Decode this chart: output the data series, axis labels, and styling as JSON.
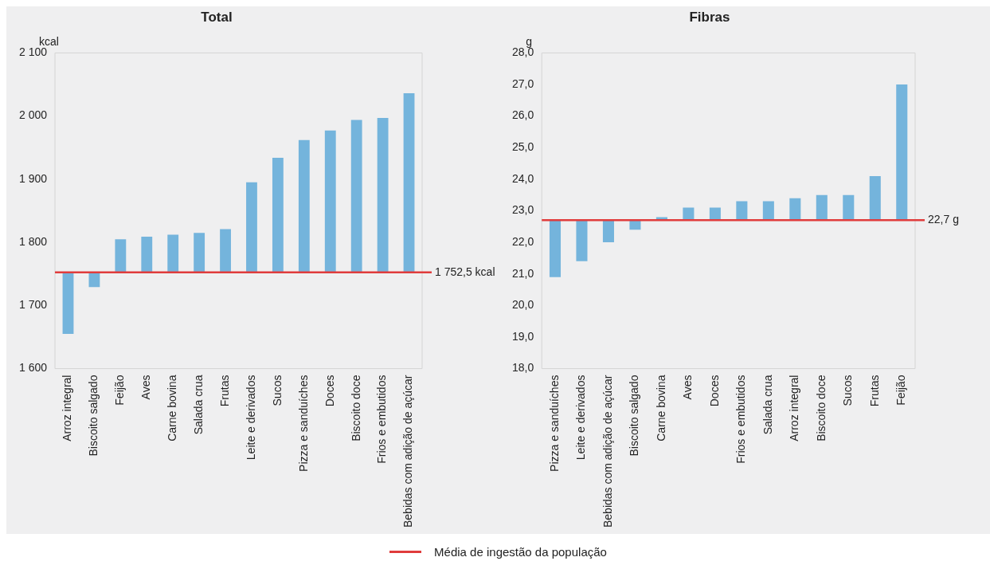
{
  "chart_data": [
    {
      "type": "bar",
      "title": "Total",
      "ylabel": "kcal",
      "categories": [
        "Arroz integral",
        "Biscoito salgado",
        "Feijão",
        "Aves",
        "Carne bovina",
        "Salada crua",
        "Frutas",
        "Leite e derivados",
        "Sucos",
        "Pizza e sanduíches",
        "Doces",
        "Biscoito doce",
        "Frios e embutidos",
        "Bebidas com adição de açúcar"
      ],
      "base": [
        1752.5,
        1752.5,
        1752.5,
        1752.5,
        1752.5,
        1752.5,
        1752.5,
        1752.5,
        1752.5,
        1752.5,
        1752.5,
        1752.5,
        1752.5,
        1752.5
      ],
      "values": [
        -97.5,
        -23.5,
        52.5,
        56.5,
        59.5,
        62.5,
        68.5,
        142.5,
        181.5,
        209.5,
        224.5,
        241.5,
        244.5,
        283.5
      ],
      "color": "#74b4dc",
      "ylim": [
        1600,
        2100
      ],
      "yticks": [
        {
          "value": 1600,
          "label": "1 600"
        },
        {
          "value": 1700,
          "label": "1 700"
        },
        {
          "value": 1800,
          "label": "1 800"
        },
        {
          "value": 1900,
          "label": "1 900"
        },
        {
          "value": 2000,
          "label": "2 000"
        },
        {
          "value": 2100,
          "label": "2 100"
        }
      ],
      "ref_lines": [
        {
          "axis": "y",
          "value": 1752.5,
          "label": "1 752,5 kcal",
          "color": "#e03c3c"
        }
      ],
      "annotations": [
        "Média de ingestão da população"
      ]
    },
    {
      "type": "bar",
      "title": "Fibras",
      "ylabel": "g",
      "categories": [
        "Pizza e sanduíches",
        "Leite e derivados",
        "Bebidas com adição de açúcar",
        "Biscoito salgado",
        "Carne bovina",
        "Aves",
        "Doces",
        "Frios e embutidos",
        "Salada crua",
        "Arroz integral",
        "Biscoito doce",
        "Sucos",
        "Frutas",
        "Feijão"
      ],
      "base": [
        22.7,
        22.7,
        22.7,
        22.7,
        22.7,
        22.7,
        22.7,
        22.7,
        22.7,
        22.7,
        22.7,
        22.7,
        22.7,
        22.7
      ],
      "values": [
        -1.8,
        -1.3,
        -0.7,
        -0.3,
        0.1,
        0.4,
        0.4,
        0.6,
        0.6,
        0.7,
        0.8,
        0.8,
        1.4,
        4.3
      ],
      "color": "#74b4dc",
      "ylim": [
        18,
        28
      ],
      "yticks": [
        {
          "value": 18,
          "label": "18,0"
        },
        {
          "value": 19,
          "label": "19,0"
        },
        {
          "value": 20,
          "label": "20,0"
        },
        {
          "value": 21,
          "label": "21,0"
        },
        {
          "value": 22,
          "label": "22,0"
        },
        {
          "value": 23,
          "label": "23,0"
        },
        {
          "value": 24,
          "label": "24,0"
        },
        {
          "value": 25,
          "label": "25,0"
        },
        {
          "value": 26,
          "label": "26,0"
        },
        {
          "value": 27,
          "label": "27,0"
        },
        {
          "value": 28,
          "label": "28,0"
        }
      ],
      "ref_lines": [
        {
          "axis": "y",
          "value": 22.7,
          "label": "22,7 g",
          "color": "#e03c3c"
        }
      ]
    }
  ]
}
